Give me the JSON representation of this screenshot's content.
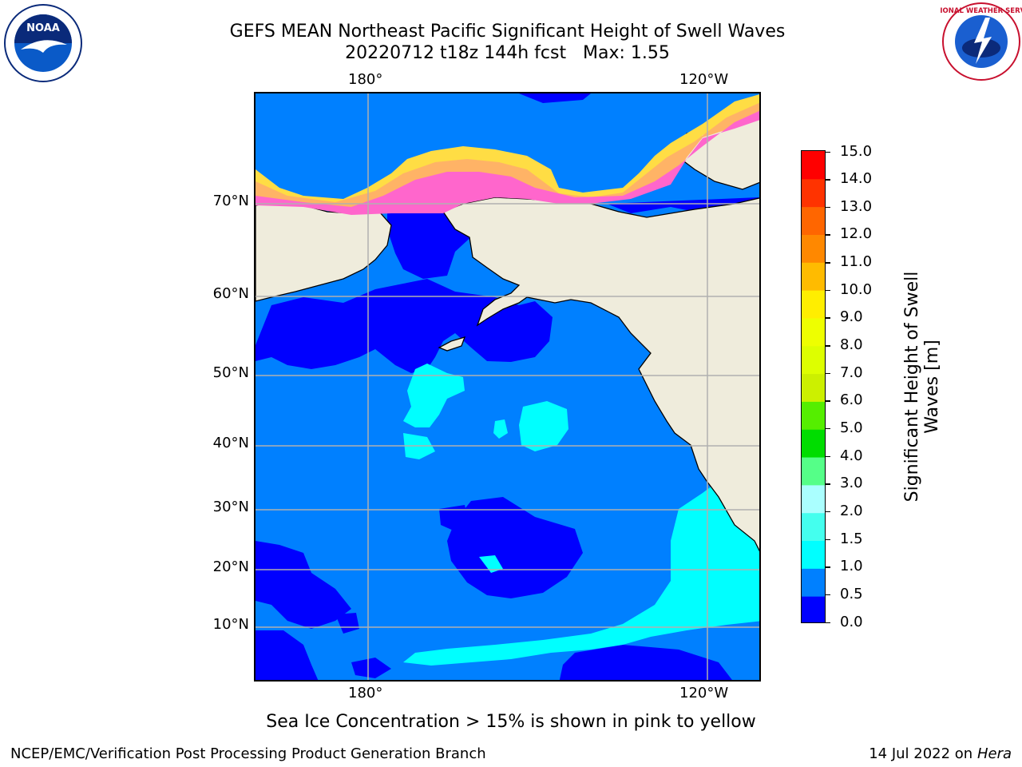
{
  "title": {
    "line1": "GEFS MEAN Northeast Pacific Significant Height of Swell Waves",
    "line2": "20220712 t18z 144h fcst   Max: 1.55"
  },
  "logos": {
    "left": "noaa-logo",
    "right": "national-weather-service-logo",
    "left_text": "NOAA",
    "right_text": "NATIONAL WEATHER SERVICE"
  },
  "map": {
    "longitude_labels": [
      "180°",
      "120°W"
    ],
    "latitude_labels": [
      "70°N",
      "60°N",
      "50°N",
      "40°N",
      "30°N",
      "20°N",
      "10°N"
    ],
    "colors": {
      "land": "#efecdc",
      "coastline": "#000000",
      "gridline": "#b0b0b0",
      "sea_ice_pink": "#ff66cc",
      "sea_ice_orange": "#ffb366",
      "sea_ice_yellow": "#ffdd44"
    }
  },
  "colorbar": {
    "label_line1": "Significant Height of Swell",
    "label_line2": "Waves [m]",
    "ticks": [
      "15.0",
      "14.0",
      "13.0",
      "12.0",
      "11.0",
      "10.0",
      "9.0",
      "8.0",
      "7.0",
      "6.0",
      "5.0",
      "4.0",
      "3.0",
      "2.0",
      "1.5",
      "1.0",
      "0.5",
      "0.0"
    ],
    "bins": [
      {
        "min": 0.0,
        "max": 0.5,
        "color": "#0000ff"
      },
      {
        "min": 0.5,
        "max": 1.0,
        "color": "#0080ff"
      },
      {
        "min": 1.0,
        "max": 1.5,
        "color": "#00ffff"
      },
      {
        "min": 1.5,
        "max": 2.0,
        "color": "#44ffee"
      },
      {
        "min": 2.0,
        "max": 3.0,
        "color": "#aaffff"
      },
      {
        "min": 3.0,
        "max": 4.0,
        "color": "#55ff88"
      },
      {
        "min": 4.0,
        "max": 5.0,
        "color": "#00dd00"
      },
      {
        "min": 5.0,
        "max": 6.0,
        "color": "#55ee00"
      },
      {
        "min": 6.0,
        "max": 7.0,
        "color": "#ccf000"
      },
      {
        "min": 7.0,
        "max": 8.0,
        "color": "#ddff00"
      },
      {
        "min": 8.0,
        "max": 9.0,
        "color": "#eeff00"
      },
      {
        "min": 9.0,
        "max": 10.0,
        "color": "#ffee00"
      },
      {
        "min": 10.0,
        "max": 11.0,
        "color": "#ffbb00"
      },
      {
        "min": 11.0,
        "max": 12.0,
        "color": "#ff8800"
      },
      {
        "min": 12.0,
        "max": 13.0,
        "color": "#ff6600"
      },
      {
        "min": 13.0,
        "max": 14.0,
        "color": "#ff3300"
      },
      {
        "min": 14.0,
        "max": 15.0,
        "color": "#ff0000"
      }
    ]
  },
  "note": "Sea Ice Concentration > 15% is shown in pink to yellow",
  "footer": {
    "left": "NCEP/EMC/Verification Post Processing Product Generation Branch",
    "date": "14 Jul 2022 on",
    "host": "Hera"
  }
}
